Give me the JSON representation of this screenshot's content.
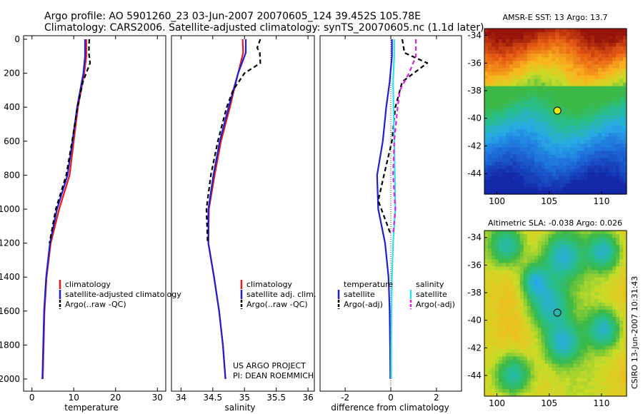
{
  "header": {
    "line1": "Argo profile: AO 5901260_23 03-Jun-2007 20070605_124 39.452S 105.78E",
    "line2": "Climatology: CARS2006. Satellite-adjusted climatology: synTS_20070605.nc (1.1d later)"
  },
  "side_note": "CSIRO 13-Jun-2007 10:31:43",
  "project_note": [
    "US ARGO PROJECT",
    "PI: DEAN ROEMMICH"
  ],
  "colors": {
    "climatology": "#e41a1c",
    "satellite": "#1f1fd6",
    "argo": "#000000",
    "sal_satellite": "#33e0f0",
    "sal_argo": "#e020e0"
  },
  "chart_data": [
    {
      "type": "line",
      "xlabel": "temperature",
      "ylabel": "",
      "xlim": [
        -2,
        32
      ],
      "ylim": [
        2050,
        0
      ],
      "xticks": [
        0,
        10,
        20,
        30
      ],
      "yticks": [
        0,
        200,
        400,
        600,
        800,
        1000,
        1200,
        1400,
        1600,
        1800,
        2000
      ],
      "legend": {
        "placement": "lower-right",
        "entries": [
          "climatology",
          "satellite-adjusted climatology",
          "Argo(..raw -QC)"
        ]
      },
      "series": [
        {
          "name": "climatology",
          "color": "#e41a1c",
          "points": [
            [
              13.0,
              0
            ],
            [
              13.0,
              100
            ],
            [
              12.5,
              200
            ],
            [
              11.0,
              400
            ],
            [
              10.0,
              600
            ],
            [
              9.0,
              800
            ],
            [
              6.5,
              1000
            ],
            [
              4.5,
              1200
            ],
            [
              3.5,
              1400
            ],
            [
              3.0,
              1600
            ],
            [
              2.8,
              1800
            ],
            [
              2.6,
              2000
            ]
          ]
        },
        {
          "name": "satellite-adjusted climatology",
          "color": "#1f1fd6",
          "points": [
            [
              12.7,
              0
            ],
            [
              12.7,
              100
            ],
            [
              12.3,
              200
            ],
            [
              10.8,
              400
            ],
            [
              9.7,
              600
            ],
            [
              8.5,
              800
            ],
            [
              6.0,
              1000
            ],
            [
              4.3,
              1200
            ],
            [
              3.4,
              1400
            ],
            [
              2.9,
              1600
            ],
            [
              2.7,
              1800
            ],
            [
              2.5,
              2000
            ]
          ]
        },
        {
          "name": "Argo(..raw -QC)",
          "color": "#000000",
          "points": [
            [
              13.7,
              0
            ],
            [
              13.6,
              80
            ],
            [
              13.9,
              140
            ],
            [
              12.2,
              250
            ],
            [
              10.9,
              400
            ],
            [
              9.6,
              600
            ],
            [
              8.2,
              800
            ],
            [
              5.7,
              1000
            ],
            [
              4.2,
              1200
            ]
          ]
        }
      ]
    },
    {
      "type": "line",
      "xlabel": "salinity",
      "ylabel": "",
      "xlim": [
        33.85,
        36.1
      ],
      "ylim": [
        2050,
        0
      ],
      "xticks": [
        34,
        34.5,
        35,
        35.5,
        36
      ],
      "yticks": [],
      "legend": {
        "placement": "lower-right",
        "entries": [
          "climatology",
          "satellite adj. clim.",
          "Argo(..raw -QC)"
        ]
      },
      "series": [
        {
          "name": "climatology",
          "color": "#e41a1c",
          "points": [
            [
              34.97,
              0
            ],
            [
              34.98,
              80
            ],
            [
              34.9,
              200
            ],
            [
              34.77,
              400
            ],
            [
              34.63,
              600
            ],
            [
              34.53,
              800
            ],
            [
              34.44,
              1000
            ],
            [
              34.43,
              1200
            ],
            [
              34.52,
              1400
            ],
            [
              34.6,
              1600
            ],
            [
              34.66,
              1800
            ],
            [
              34.7,
              2000
            ]
          ]
        },
        {
          "name": "satellite adj. clim.",
          "color": "#1f1fd6",
          "points": [
            [
              35.02,
              0
            ],
            [
              35.02,
              80
            ],
            [
              34.9,
              200
            ],
            [
              34.75,
              400
            ],
            [
              34.61,
              600
            ],
            [
              34.51,
              800
            ],
            [
              34.43,
              1000
            ],
            [
              34.43,
              1200
            ],
            [
              34.52,
              1400
            ],
            [
              34.6,
              1600
            ],
            [
              34.66,
              1800
            ],
            [
              34.7,
              2000
            ]
          ]
        },
        {
          "name": "Argo(..raw -QC)",
          "color": "#000000",
          "points": [
            [
              35.25,
              0
            ],
            [
              35.2,
              50
            ],
            [
              35.24,
              80
            ],
            [
              35.25,
              140
            ],
            [
              35.0,
              200
            ],
            [
              34.82,
              300
            ],
            [
              34.72,
              400
            ],
            [
              34.58,
              600
            ],
            [
              34.47,
              800
            ],
            [
              34.4,
              1000
            ],
            [
              34.42,
              1200
            ]
          ]
        }
      ]
    },
    {
      "type": "line",
      "xlabel": "difference from climatology",
      "ylabel": "",
      "xlim": [
        -3.1,
        3.1
      ],
      "ylim": [
        2050,
        0
      ],
      "xticks": [
        -2,
        0,
        2
      ],
      "yticks": [],
      "legend": {
        "placement": "lower-center",
        "entries": [
          "temperature",
          "satellite",
          "Argo(-adj)",
          "salinity",
          "satellite",
          "Argo(-adj)"
        ]
      },
      "series": [
        {
          "name": "satellite",
          "group": "temperature",
          "color": "#1f1fd6",
          "dash": "",
          "points": [
            [
              0.05,
              0
            ],
            [
              0.05,
              100
            ],
            [
              -0.05,
              250
            ],
            [
              -0.2,
              400
            ],
            [
              -0.35,
              600
            ],
            [
              -0.6,
              800
            ],
            [
              -0.55,
              1000
            ],
            [
              -0.25,
              1200
            ],
            [
              -0.1,
              1400
            ],
            [
              -0.05,
              1600
            ],
            [
              -0.03,
              1800
            ],
            [
              -0.02,
              2000
            ]
          ]
        },
        {
          "name": "Argo(-adj)",
          "group": "temperature",
          "color": "#000000",
          "dash": "6,4",
          "points": [
            [
              0.5,
              0
            ],
            [
              0.6,
              80
            ],
            [
              1.6,
              140
            ],
            [
              0.5,
              250
            ],
            [
              0.2,
              400
            ],
            [
              0.05,
              600
            ],
            [
              -0.3,
              800
            ],
            [
              -0.55,
              950
            ],
            [
              0,
              1150
            ]
          ]
        },
        {
          "name": "satellite",
          "group": "salinity",
          "color": "#33e0f0",
          "dash": "",
          "points": [
            [
              0.15,
              0
            ],
            [
              0.15,
              100
            ],
            [
              0.1,
              250
            ],
            [
              0.12,
              400
            ],
            [
              0.15,
              600
            ],
            [
              0.18,
              800
            ],
            [
              0.2,
              1000
            ],
            [
              0.1,
              1200
            ],
            [
              0.05,
              1400
            ],
            [
              0.03,
              1600
            ],
            [
              0.02,
              1800
            ],
            [
              0.02,
              2000
            ]
          ]
        },
        {
          "name": "Argo(-adj)",
          "group": "salinity",
          "color": "#e020e0",
          "dash": "6,4",
          "points": [
            [
              1.1,
              0
            ],
            [
              1.1,
              100
            ],
            [
              0.8,
              200
            ],
            [
              0.4,
              300
            ],
            [
              0.3,
              400
            ],
            [
              0.15,
              600
            ],
            [
              0.1,
              800
            ],
            [
              0.2,
              1000
            ],
            [
              0.1,
              1150
            ]
          ]
        }
      ]
    },
    {
      "type": "heatmap",
      "title": "AMSR-E SST: 13 Argo: 13.7",
      "xticks": [
        100,
        105,
        110
      ],
      "yticks": [
        -34,
        -36,
        -38,
        -40,
        -42,
        -44
      ],
      "xlim": [
        98.8,
        112.4
      ],
      "ylim": [
        -45.5,
        -33.5
      ],
      "marker": [
        105.78,
        -39.45
      ]
    },
    {
      "type": "heatmap",
      "title": "Altimetric SLA: -0.038 Argo: 0.026",
      "xticks": [
        100,
        105,
        110
      ],
      "yticks": [
        -34,
        -36,
        -38,
        -40,
        -42,
        -44
      ],
      "xlim": [
        98.8,
        112.4
      ],
      "ylim": [
        -45.5,
        -33.5
      ],
      "marker": [
        105.78,
        -39.45
      ]
    }
  ]
}
